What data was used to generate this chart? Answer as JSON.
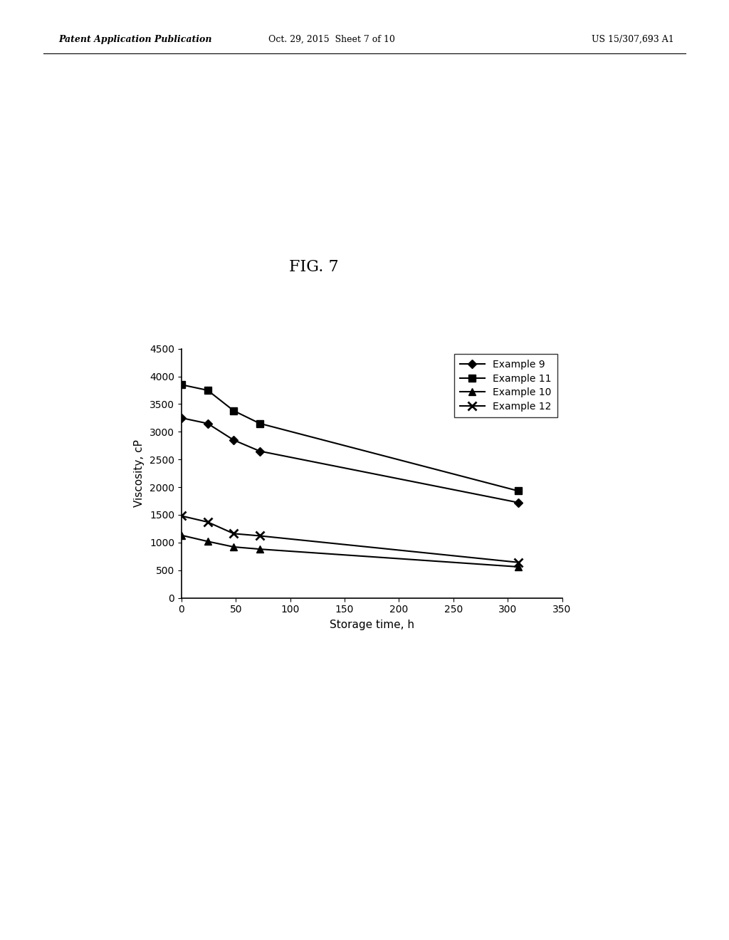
{
  "title": "FIG. 7",
  "xlabel": "Storage time, h",
  "ylabel": "Viscosity, cP",
  "header_left": "Patent Application Publication",
  "header_center": "Oct. 29, 2015  Sheet 7 of 10",
  "header_right": "US 15/307,693 A1",
  "series": [
    {
      "label": "Example 9",
      "x": [
        0,
        24,
        48,
        72,
        310
      ],
      "y": [
        3250,
        3150,
        2850,
        2650,
        1720
      ],
      "marker": "D",
      "color": "#000000"
    },
    {
      "label": "Example 11",
      "x": [
        0,
        24,
        48,
        72,
        310
      ],
      "y": [
        3850,
        3750,
        3380,
        3150,
        1930
      ],
      "marker": "s",
      "color": "#000000"
    },
    {
      "label": "Example 10",
      "x": [
        0,
        24,
        48,
        72,
        310
      ],
      "y": [
        1130,
        1020,
        920,
        880,
        560
      ],
      "marker": "^",
      "color": "#000000"
    },
    {
      "label": "Example 12",
      "x": [
        0,
        24,
        48,
        72,
        310
      ],
      "y": [
        1480,
        1370,
        1160,
        1120,
        640
      ],
      "marker": "x",
      "color": "#000000"
    }
  ],
  "xlim": [
    0,
    350
  ],
  "ylim": [
    0,
    4500
  ],
  "xticks": [
    0,
    50,
    100,
    150,
    200,
    250,
    300,
    350
  ],
  "yticks": [
    0,
    500,
    1000,
    1500,
    2000,
    2500,
    3000,
    3500,
    4000,
    4500
  ],
  "background_color": "#ffffff",
  "fig_label_fontsize": 16,
  "axis_label_fontsize": 11,
  "tick_fontsize": 10,
  "legend_fontsize": 10,
  "header_fontsize": 9
}
